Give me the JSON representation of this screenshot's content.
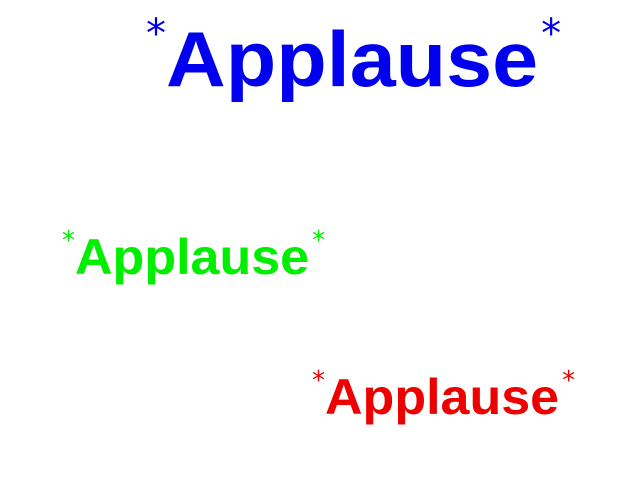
{
  "items": [
    {
      "prefix": "*",
      "text": "Applause",
      "suffix": "*",
      "color": "#0000ee"
    },
    {
      "prefix": "*",
      "text": "Applause",
      "suffix": "*",
      "color": "#00ee00"
    },
    {
      "prefix": "*",
      "text": "Applause",
      "suffix": "*",
      "color": "#ee0000"
    }
  ]
}
